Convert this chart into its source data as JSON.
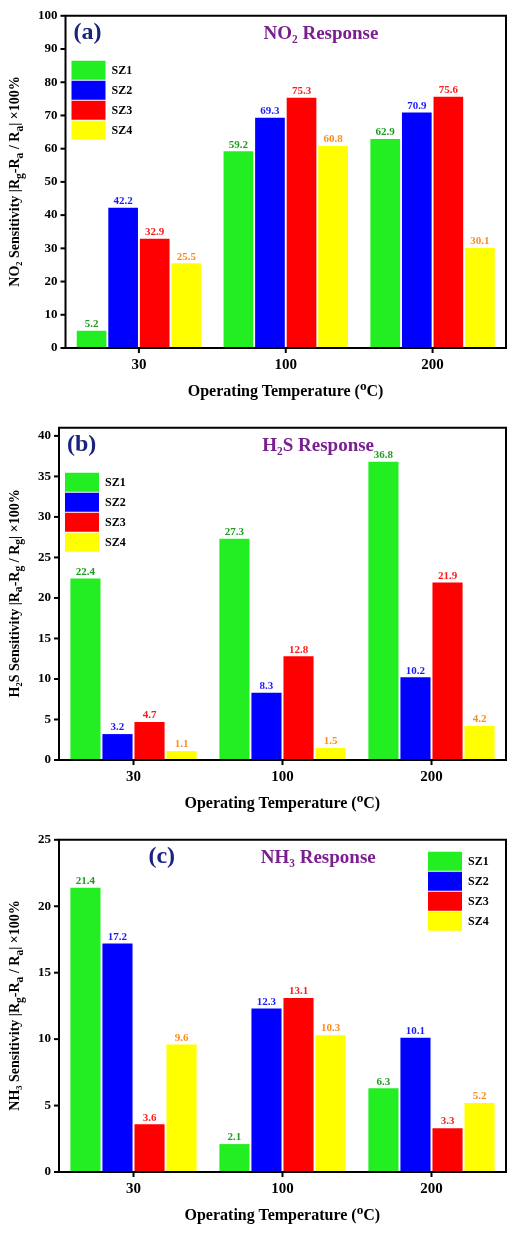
{
  "chart_data": [
    {
      "type": "bar",
      "title": "NO₂ Response",
      "annotations": [
        "(a)"
      ],
      "xlabel": "Operating Temperature ($^{o}$C)",
      "ylabel": "NO₂ Sensitivity |R$_{g}$-R$_{a}$ / R$_{a}$| ×100%",
      "categories": [
        "30",
        "100",
        "200"
      ],
      "series": [
        {
          "name": "SZ1",
          "color": "#22ee22",
          "values": [
            5.2,
            59.2,
            62.9
          ]
        },
        {
          "name": "SZ2",
          "color": "#0000ff",
          "values": [
            42.2,
            69.3,
            70.9
          ]
        },
        {
          "name": "SZ3",
          "color": "#ff0000",
          "values": [
            32.9,
            75.3,
            75.6
          ]
        },
        {
          "name": "SZ4",
          "color": "#ffff00",
          "values": [
            25.5,
            60.8,
            30.1
          ]
        }
      ],
      "ylim": [
        0,
        100
      ],
      "yticks": [
        0,
        10,
        20,
        30,
        40,
        50,
        60,
        70,
        80,
        90,
        100
      ],
      "legend": "top left",
      "data_labels": true
    },
    {
      "type": "bar",
      "title": "H₂S Response",
      "annotations": [
        "(b)"
      ],
      "xlabel": "Operating Temperature ($^{o}$C)",
      "ylabel": "H₂S Sensitivity |R$_{a}$-R$_{g}$ / R$_{g}$| ×100%",
      "categories": [
        "30",
        "100",
        "200"
      ],
      "series": [
        {
          "name": "SZ1",
          "color": "#22ee22",
          "values": [
            22.4,
            27.3,
            36.8
          ]
        },
        {
          "name": "SZ2",
          "color": "#0000ff",
          "values": [
            3.2,
            8.3,
            10.2
          ]
        },
        {
          "name": "SZ3",
          "color": "#ff0000",
          "values": [
            4.7,
            12.8,
            21.9
          ]
        },
        {
          "name": "SZ4",
          "color": "#ffff00",
          "values": [
            1.1,
            1.5,
            4.2
          ]
        }
      ],
      "ylim": [
        0,
        41
      ],
      "yticks": [
        0,
        5,
        10,
        15,
        20,
        25,
        30,
        35,
        40
      ],
      "legend": "top left",
      "data_labels": true
    },
    {
      "type": "bar",
      "title": "NH₃ Response",
      "annotations": [
        "(c)"
      ],
      "xlabel": "Operating Temperature ($^{o}$C)",
      "ylabel": "NH₃ Sensitivity |R$_{g}$-R$_{a}$ / R$_{a}$| ×100%",
      "categories": [
        "30",
        "100",
        "200"
      ],
      "series": [
        {
          "name": "SZ1",
          "color": "#22ee22",
          "values": [
            21.4,
            2.1,
            6.3
          ]
        },
        {
          "name": "SZ2",
          "color": "#0000ff",
          "values": [
            17.2,
            12.3,
            10.1
          ]
        },
        {
          "name": "SZ3",
          "color": "#ff0000",
          "values": [
            3.6,
            13.1,
            3.3
          ]
        },
        {
          "name": "SZ4",
          "color": "#ffff00",
          "values": [
            9.6,
            10.3,
            5.2
          ]
        }
      ],
      "ylim": [
        0,
        25
      ],
      "yticks": [
        0,
        5,
        10,
        15,
        20,
        25
      ],
      "legend": "top right",
      "data_labels": true
    }
  ]
}
